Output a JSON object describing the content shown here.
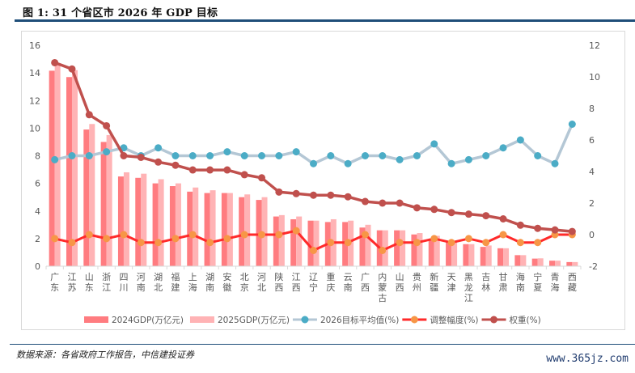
{
  "header": {
    "title": "图 1: 31 个省区市 2026 年 GDP 目标"
  },
  "footer": {
    "source": "数据来源：各省政府工作报告，中信建投证券",
    "watermark": "www.365jz.com"
  },
  "colors": {
    "gdp2024": "#ff7c80",
    "gdp2025": "#ffb3b5",
    "target": "#4bacc6",
    "target_line": "#b4c7d5",
    "adjust_line": "#ff2a2a",
    "adjust_marker": "#f79646",
    "weight": "#c0504d"
  },
  "chart_data": {
    "type": "bar",
    "title": "图 1: 31 个省区市 2026 年 GDP 目标",
    "categories": [
      "广东",
      "江苏",
      "山东",
      "浙江",
      "四川",
      "河南",
      "湖北",
      "福建",
      "上海",
      "湖南",
      "安徽",
      "北京",
      "河北",
      "陕西",
      "江西",
      "辽宁",
      "重庆",
      "云南",
      "广西",
      "内蒙古",
      "山西",
      "贵州",
      "新疆",
      "天津",
      "黑龙江",
      "吉林",
      "甘肃",
      "海南",
      "宁夏",
      "青海",
      "西藏"
    ],
    "left_axis": {
      "ylim": [
        0,
        16
      ],
      "ticks": [
        "0",
        "2",
        "4",
        "6",
        "8",
        "10",
        "12",
        "14",
        "16"
      ]
    },
    "right_axis": {
      "ylim": [
        -2,
        12
      ],
      "ticks": [
        "-2",
        "0",
        "2",
        "4",
        "6",
        "8",
        "10",
        "12"
      ]
    },
    "grid": false,
    "legend_position": "bottom",
    "series": [
      {
        "name": "2024GDP(万亿元)",
        "type": "bar",
        "axis": "left",
        "values": [
          14.16,
          13.7,
          9.9,
          9.0,
          6.5,
          6.4,
          6.0,
          5.8,
          5.4,
          5.3,
          5.3,
          5.0,
          4.8,
          3.6,
          3.4,
          3.3,
          3.2,
          3.2,
          2.8,
          2.6,
          2.6,
          2.3,
          2.0,
          1.8,
          1.6,
          1.4,
          1.3,
          0.8,
          0.55,
          0.4,
          0.3
        ]
      },
      {
        "name": "2025GDP(万亿元)",
        "type": "bar",
        "axis": "left",
        "values": [
          14.6,
          14.2,
          10.3,
          9.5,
          6.8,
          6.7,
          6.3,
          6.0,
          5.7,
          5.5,
          5.3,
          5.2,
          5.0,
          3.7,
          3.6,
          3.3,
          3.4,
          3.3,
          3.0,
          2.6,
          2.6,
          2.4,
          2.2,
          1.8,
          1.6,
          1.5,
          1.3,
          0.8,
          0.57,
          0.4,
          0.3
        ]
      },
      {
        "name": "2026目标平均值(%)",
        "type": "line",
        "axis": "right",
        "values": [
          4.75,
          5,
          5,
          5.25,
          5.5,
          5,
          5.5,
          5,
          5,
          5,
          5.25,
          5,
          5,
          5,
          5.25,
          4.5,
          5,
          4.5,
          5,
          5,
          4.75,
          5,
          5.75,
          4.5,
          4.75,
          5,
          5.5,
          6,
          5,
          4.5,
          7
        ]
      },
      {
        "name": "调整幅度(%)",
        "type": "line",
        "axis": "right",
        "values": [
          -0.25,
          -0.5,
          0,
          -0.25,
          0,
          -0.5,
          -0.5,
          -0.25,
          0,
          -0.5,
          -0.25,
          0,
          0,
          0,
          0.25,
          -1,
          -0.5,
          -0.5,
          0,
          -1,
          -0.5,
          -0.5,
          -0.25,
          -0.5,
          -0.25,
          -0.5,
          0,
          -0.5,
          -0.5,
          0,
          0
        ]
      },
      {
        "name": "权重(%)",
        "type": "line",
        "axis": "right",
        "values": [
          10.9,
          10.5,
          7.6,
          6.9,
          5.0,
          4.9,
          4.6,
          4.4,
          4.1,
          4.1,
          4.1,
          3.8,
          3.6,
          2.7,
          2.6,
          2.5,
          2.5,
          2.4,
          2.1,
          2.0,
          2.0,
          1.7,
          1.6,
          1.4,
          1.3,
          1.2,
          1.0,
          0.6,
          0.4,
          0.3,
          0.2
        ]
      }
    ]
  }
}
